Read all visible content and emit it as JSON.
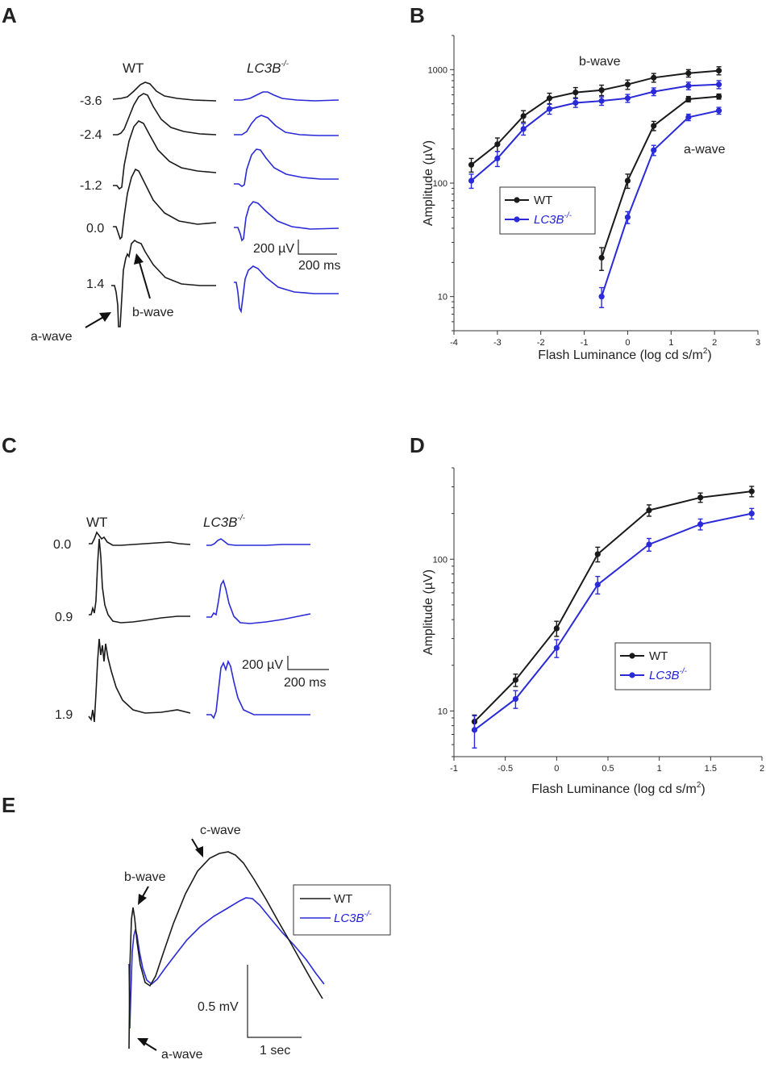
{
  "figure": {
    "colors": {
      "wt": "#1a1a1a",
      "ko": "#2a2ad8"
    }
  },
  "panels": {
    "A": {
      "label": "A",
      "col_wt": "WT",
      "col_ko": "LC3B",
      "col_ko_sup": "-/-",
      "intensities": [
        "-3.6",
        "-2.4",
        "-1.2",
        "0.0",
        "1.4"
      ],
      "scale_amp": "200 µV",
      "scale_time": "200 ms",
      "ann_a": "a-wave",
      "ann_b": "b-wave"
    },
    "B": {
      "label": "B",
      "b_wave_label": "b-wave",
      "a_wave_label": "a-wave"
    },
    "C": {
      "label": "C",
      "col_wt": "WT",
      "col_ko": "LC3B",
      "col_ko_sup": "-/-",
      "intensities": [
        "0.0",
        "0.9",
        "1.9"
      ],
      "scale_amp": "200 µV",
      "scale_time": "200 ms"
    },
    "D": {
      "label": "D"
    },
    "E": {
      "label": "E",
      "ann_c": "c-wave",
      "ann_b": "b-wave",
      "ann_a": "a-wave",
      "legend_wt": "WT",
      "legend_ko": "LC3B",
      "legend_ko_sup": "-/-",
      "scale_amp": "0.5 mV",
      "scale_time": "1 sec"
    }
  },
  "chart_data": [
    {
      "id": "B",
      "type": "line",
      "title": "",
      "xlabel": "Flash Luminance (log cd s/m",
      "xlabel_sup": "2",
      "xlabel_end": ")",
      "ylabel": "Amplitude (µV)",
      "xlim": [
        -4,
        3
      ],
      "ylim": [
        5,
        2000
      ],
      "yscale": "log",
      "xticks": [
        -4,
        -3,
        -2,
        -1,
        0,
        1,
        2,
        3
      ],
      "xtick_labels": [
        "-4",
        "-3",
        "-2",
        "-1",
        "0",
        "1",
        "2",
        "3"
      ],
      "yticks": [
        10,
        100,
        1000
      ],
      "ytick_labels": [
        "10",
        "100",
        "1000"
      ],
      "legend": {
        "position": "center-left",
        "entries": [
          "WT",
          "LC3B"
        ],
        "ko_sup": "-/-"
      },
      "series": [
        {
          "name": "WT b-wave",
          "group": "wt",
          "x": [
            -3.6,
            -3.0,
            -2.4,
            -1.8,
            -1.2,
            -0.6,
            0.0,
            0.6,
            1.4,
            2.1
          ],
          "values": [
            145,
            220,
            390,
            560,
            630,
            660,
            740,
            850,
            930,
            980
          ],
          "err": [
            20,
            30,
            45,
            60,
            65,
            70,
            70,
            75,
            70,
            80
          ]
        },
        {
          "name": "LC3B b-wave",
          "group": "ko",
          "x": [
            -3.6,
            -3.0,
            -2.4,
            -1.8,
            -1.2,
            -0.6,
            0.0,
            0.6,
            1.4,
            2.1
          ],
          "values": [
            105,
            165,
            300,
            450,
            510,
            530,
            560,
            640,
            720,
            740
          ],
          "err": [
            15,
            25,
            35,
            45,
            45,
            45,
            45,
            50,
            55,
            60
          ]
        },
        {
          "name": "WT a-wave",
          "group": "wt",
          "x": [
            -0.6,
            0.0,
            0.6,
            1.4,
            2.1
          ],
          "values": [
            22,
            105,
            320,
            550,
            580
          ],
          "err": [
            5,
            15,
            30,
            30,
            30
          ]
        },
        {
          "name": "LC3B a-wave",
          "group": "ko",
          "x": [
            -0.6,
            0.0,
            0.6,
            1.4,
            2.1
          ],
          "values": [
            10,
            50,
            195,
            380,
            435
          ],
          "err": [
            2,
            6,
            20,
            25,
            30
          ]
        }
      ]
    },
    {
      "id": "D",
      "type": "line",
      "title": "",
      "xlabel": "Flash Luminance (log cd s/m",
      "xlabel_sup": "2",
      "xlabel_end": ")",
      "ylabel": "Amplitude (µV)",
      "xlim": [
        -1,
        2
      ],
      "ylim": [
        5,
        400
      ],
      "yscale": "log",
      "xticks": [
        -1,
        -0.5,
        0,
        0.5,
        1,
        1.5,
        2
      ],
      "xtick_labels": [
        "-1",
        "-0.5",
        "0",
        "0.5",
        "1",
        "1.5",
        "2"
      ],
      "yticks": [
        10,
        100
      ],
      "ytick_labels": [
        "10",
        "100"
      ],
      "legend": {
        "position": "center-right",
        "entries": [
          "WT",
          "LC3B"
        ],
        "ko_sup": "-/-"
      },
      "series": [
        {
          "name": "WT",
          "group": "wt",
          "x": [
            -0.8,
            -0.4,
            0.0,
            0.4,
            0.9,
            1.4,
            1.9
          ],
          "values": [
            8.5,
            16,
            35,
            108,
            210,
            255,
            280
          ],
          "err": [
            0.9,
            1.5,
            4,
            12,
            18,
            18,
            22
          ]
        },
        {
          "name": "LC3B",
          "group": "ko",
          "x": [
            -0.8,
            -0.4,
            0.0,
            0.4,
            0.9,
            1.4,
            1.9
          ],
          "values": [
            7.5,
            12,
            26,
            68,
            125,
            170,
            200
          ],
          "err": [
            1.8,
            1.6,
            3.5,
            9,
            12,
            14,
            16
          ]
        }
      ]
    }
  ]
}
